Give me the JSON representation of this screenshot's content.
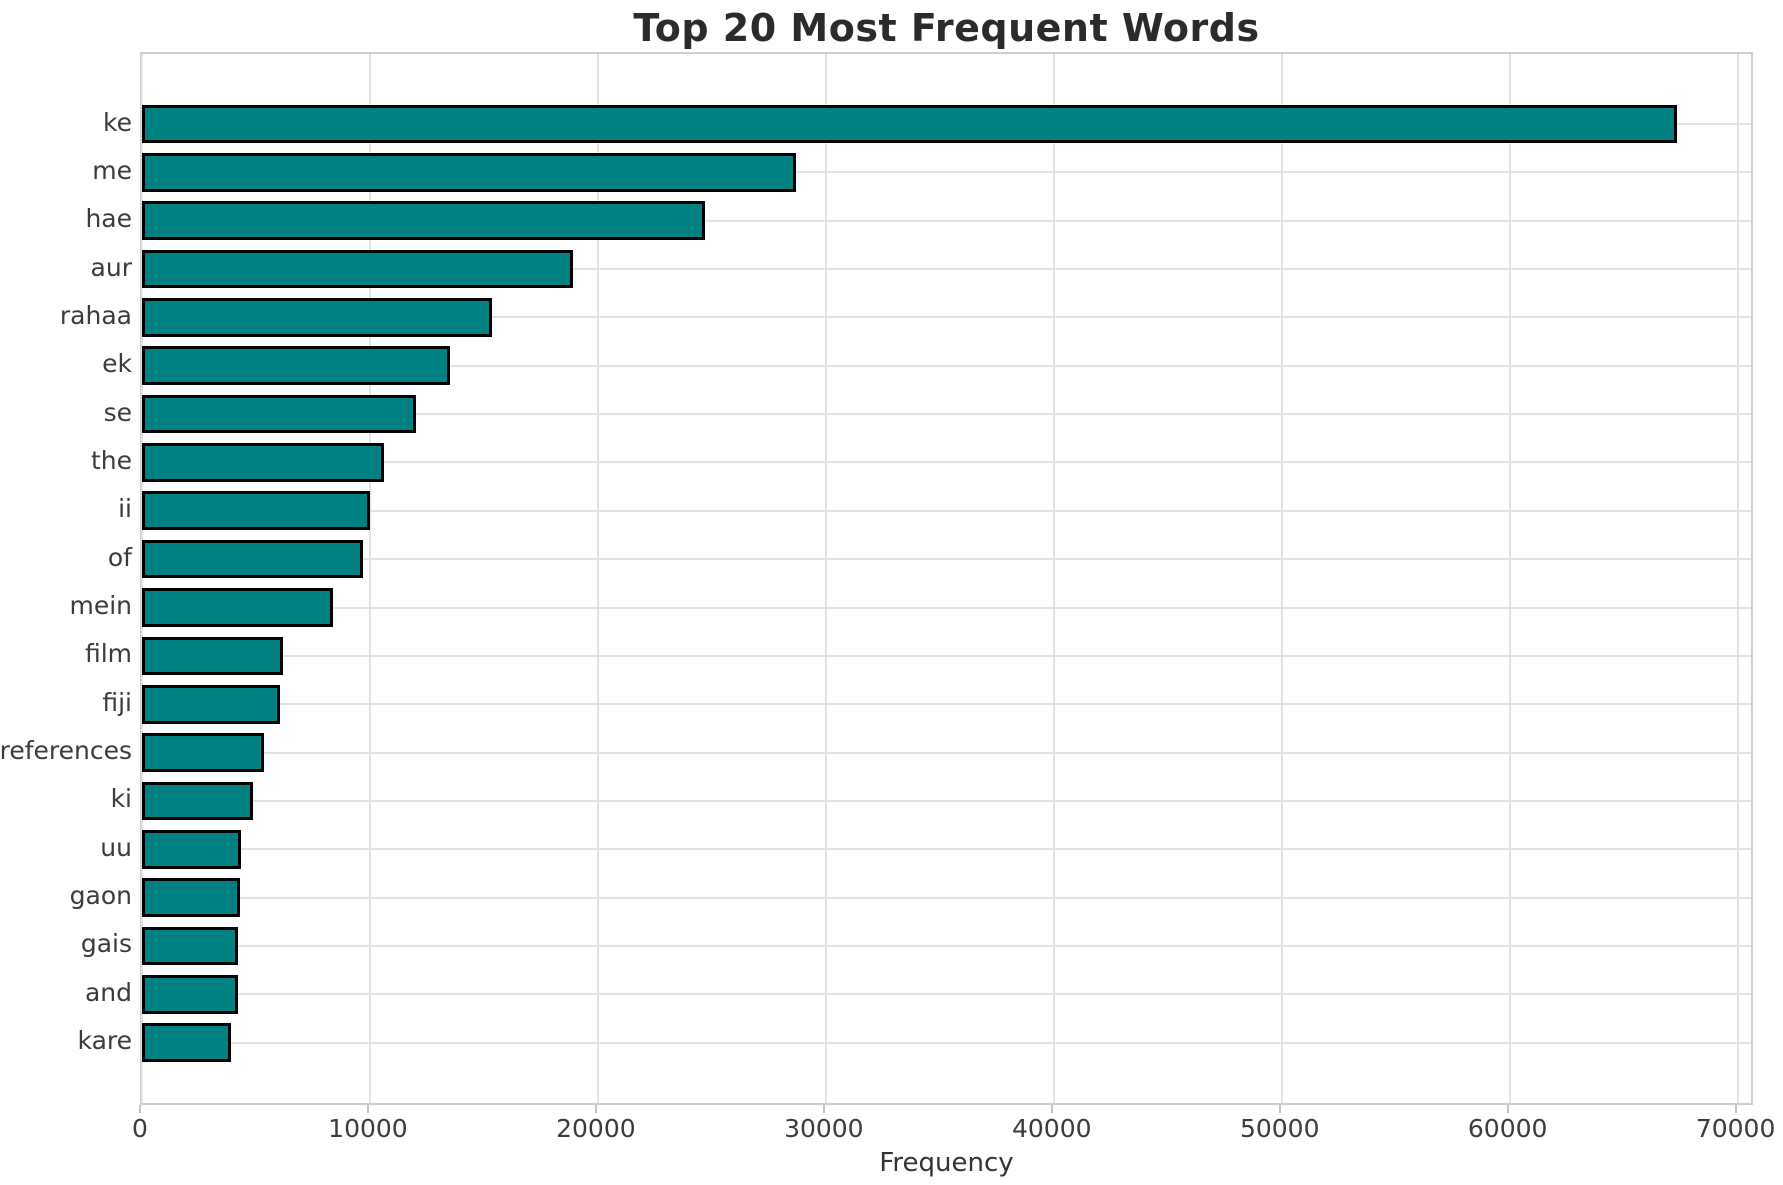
{
  "chart_data": {
    "type": "bar",
    "orientation": "horizontal",
    "title": "Top 20 Most Frequent Words",
    "xlabel": "Frequency",
    "ylabel": "",
    "categories": [
      "ke",
      "me",
      "hae",
      "aur",
      "rahaa",
      "ek",
      "se",
      "the",
      "ii",
      "of",
      "mein",
      "film",
      "fiji",
      "references",
      "ki",
      "uu",
      "gaon",
      "gais",
      "and",
      "kare"
    ],
    "values": [
      67350,
      28700,
      24700,
      18900,
      15350,
      13500,
      12000,
      10600,
      10000,
      9700,
      8400,
      6200,
      6050,
      5350,
      4850,
      4350,
      4300,
      4230,
      4220,
      3900
    ],
    "xticks": [
      0,
      10000,
      20000,
      30000,
      40000,
      50000,
      60000,
      70000
    ],
    "xlim": [
      0,
      70763
    ],
    "grid": true,
    "legend": null,
    "colors": {
      "bar_fill": "#008080",
      "bar_edge": "#000000",
      "grid": "#e2e2e2",
      "spine": "#cfcfcf",
      "tick_text": "#3b3b3b",
      "title_text": "#2b2b2b"
    }
  }
}
